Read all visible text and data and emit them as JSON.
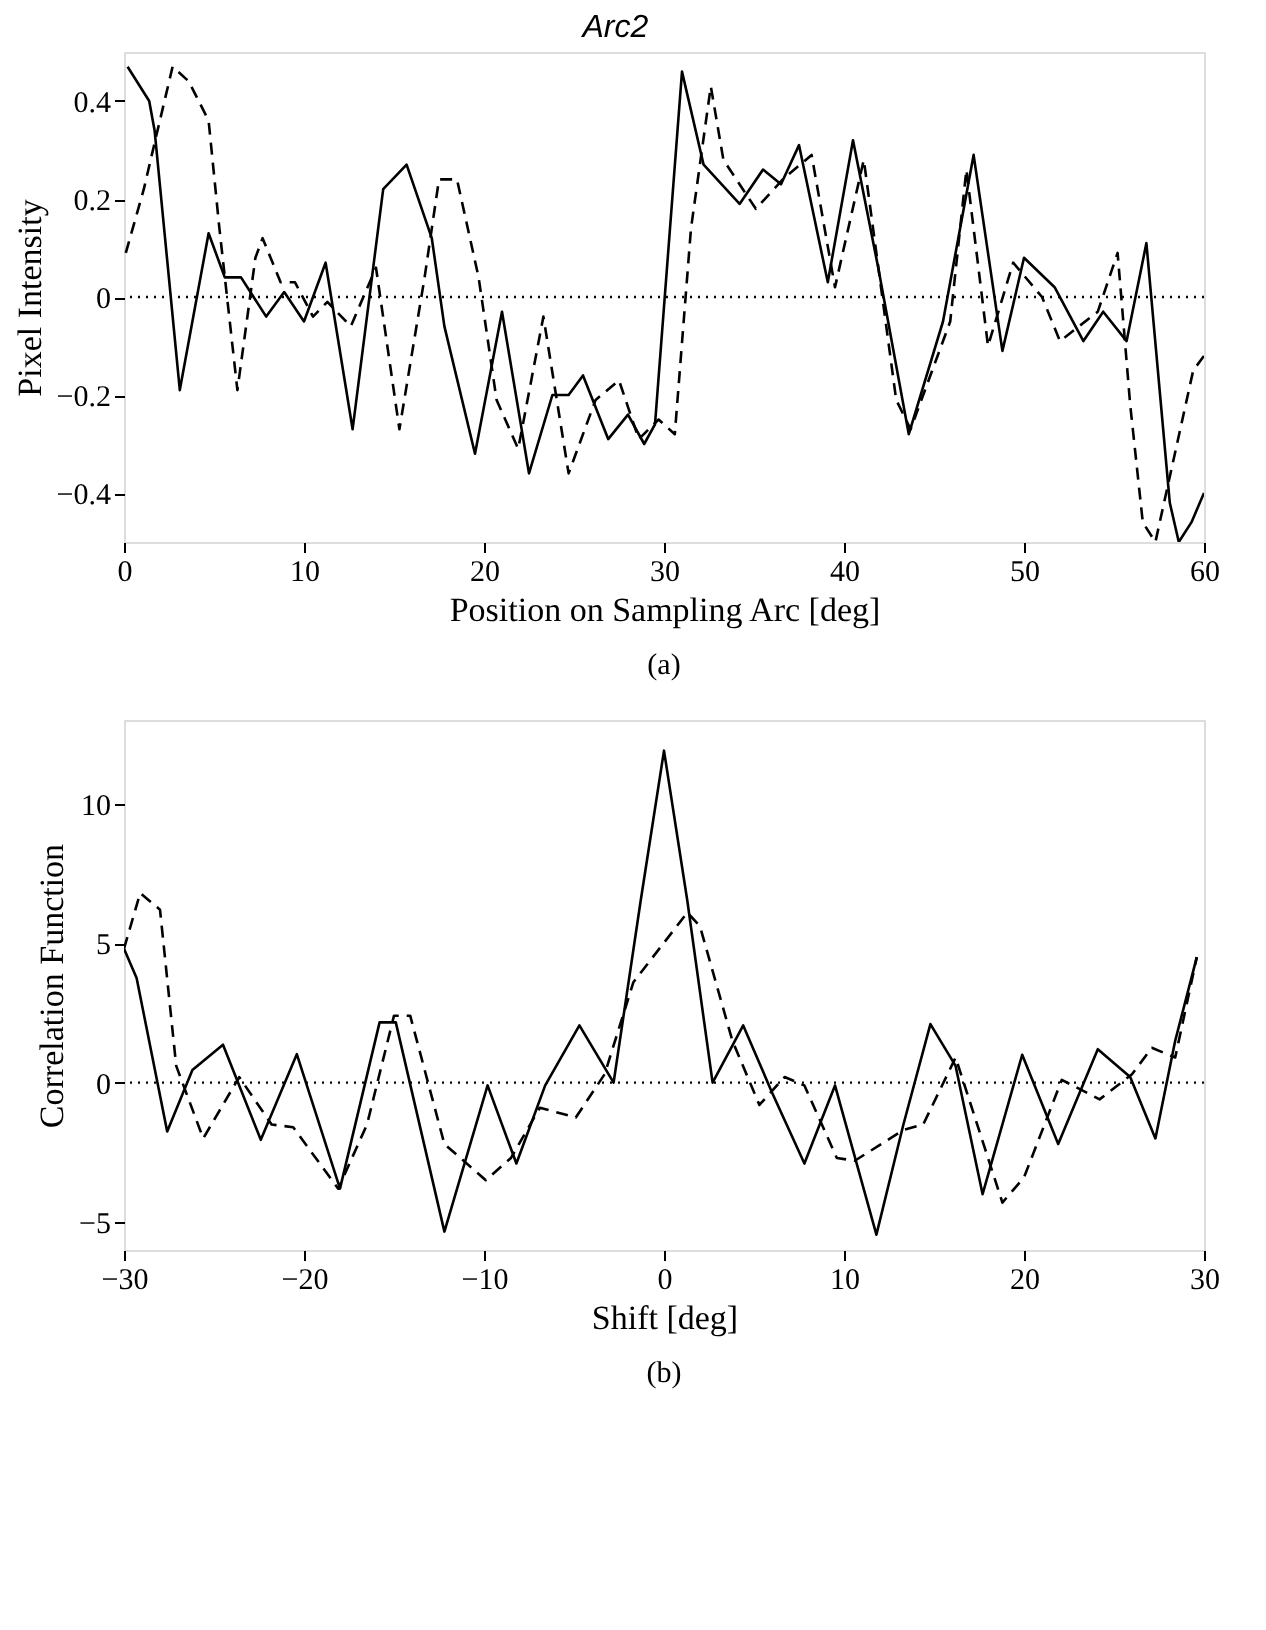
{
  "chart_data": [
    {
      "type": "line",
      "title": "Arc2",
      "xlabel": "Position on Sampling Arc [deg]",
      "ylabel": "Pixel Intensity",
      "xlim": [
        0,
        60
      ],
      "ylim": [
        -0.5,
        0.5
      ],
      "xticks": [
        0,
        10,
        20,
        30,
        40,
        50,
        60
      ],
      "yticks": [
        -0.4,
        -0.2,
        0,
        0.2,
        0.4
      ],
      "grid": false,
      "marker": "none",
      "annotations": [
        "(a)"
      ],
      "ref_lines": [
        {
          "axis": "y",
          "value": 0,
          "line_style": "dotted",
          "color": "#000000"
        }
      ],
      "series": [
        {
          "color": "#000000",
          "line_style": "solid",
          "x": [
            0.2,
            1.4,
            1.7,
            3.1,
            4.7,
            5.6,
            6.5,
            7.9,
            8.9,
            10.0,
            11.2,
            12.7,
            14.4,
            15.7,
            17.1,
            17.8,
            19.5,
            21.0,
            22.5,
            23.8,
            24.7,
            25.5,
            26.9,
            28.0,
            28.9,
            29.5,
            31.0,
            32.2,
            34.2,
            35.5,
            36.5,
            37.5,
            39.1,
            40.5,
            41.9,
            43.6,
            45.5,
            47.2,
            48.8,
            50.0,
            51.7,
            53.3,
            54.4,
            55.7,
            56.8,
            58.1,
            58.6,
            59.3,
            60
          ],
          "values": [
            0.47,
            0.4,
            0.34,
            -0.19,
            0.13,
            0.04,
            0.04,
            -0.04,
            0.01,
            -0.05,
            0.07,
            -0.27,
            0.22,
            0.27,
            0.12,
            -0.06,
            -0.32,
            -0.03,
            -0.36,
            -0.2,
            -0.2,
            -0.16,
            -0.29,
            -0.24,
            -0.3,
            -0.26,
            0.46,
            0.27,
            0.19,
            0.26,
            0.23,
            0.31,
            0.03,
            0.32,
            0.06,
            -0.28,
            -0.05,
            0.29,
            -0.11,
            0.08,
            0.02,
            -0.09,
            -0.03,
            -0.09,
            0.11,
            -0.42,
            -0.5,
            -0.46,
            -0.4
          ]
        },
        {
          "color": "#000000",
          "line_style": "dashed",
          "x": [
            0.1,
            1.1,
            1.8,
            2.7,
            3.6,
            4.7,
            5.3,
            6.3,
            7.3,
            7.7,
            8.7,
            9.5,
            10.5,
            11.3,
            12.6,
            14.0,
            15.3,
            16.7,
            17.5,
            18.5,
            19.7,
            20.7,
            21.9,
            23.3,
            24.7,
            26.2,
            27.5,
            28.6,
            29.7,
            30.6,
            31.5,
            32.6,
            33.3,
            35.1,
            36.6,
            38.2,
            39.5,
            41.1,
            42.9,
            43.7,
            45.9,
            46.8,
            48.0,
            49.4,
            51.0,
            52.0,
            54.1,
            55.2,
            55.9,
            56.6,
            57.3,
            59.4,
            60
          ],
          "values": [
            0.09,
            0.22,
            0.33,
            0.47,
            0.44,
            0.36,
            0.14,
            -0.19,
            0.08,
            0.12,
            0.03,
            0.03,
            -0.04,
            -0.01,
            -0.06,
            0.06,
            -0.27,
            0.04,
            0.24,
            0.24,
            0.04,
            -0.21,
            -0.31,
            -0.04,
            -0.36,
            -0.21,
            -0.17,
            -0.29,
            -0.25,
            -0.28,
            0.14,
            0.43,
            0.28,
            0.18,
            0.24,
            0.29,
            0.02,
            0.28,
            -0.21,
            -0.27,
            -0.05,
            0.26,
            -0.1,
            0.07,
            0.0,
            -0.09,
            -0.03,
            0.09,
            -0.22,
            -0.46,
            -0.5,
            -0.15,
            -0.12
          ]
        }
      ]
    },
    {
      "type": "line",
      "xlabel": "Shift [deg]",
      "ylabel": "Correlation Function",
      "xlim": [
        -30,
        30
      ],
      "ylim": [
        -6,
        13
      ],
      "xticks": [
        -30,
        -20,
        -10,
        0,
        10,
        20,
        30
      ],
      "yticks": [
        -5,
        0,
        5,
        10
      ],
      "grid": false,
      "marker": "none",
      "annotations": [
        "(b)"
      ],
      "ref_lines": [
        {
          "axis": "y",
          "value": 0,
          "line_style": "dotted",
          "color": "#000000"
        }
      ],
      "series": [
        {
          "color": "#000000",
          "line_style": "solid",
          "x": [
            -30,
            -29.3,
            -27.6,
            -26.2,
            -24.5,
            -22.4,
            -20.4,
            -18.0,
            -15.8,
            -14.9,
            -12.2,
            -9.8,
            -8.2,
            -6.6,
            -4.7,
            -2.8,
            -1.3,
            0,
            1.3,
            2.7,
            4.4,
            6.0,
            7.8,
            9.5,
            11.8,
            13.3,
            14.8,
            16.2,
            17.7,
            19.9,
            21.9,
            24.1,
            25.9,
            27.3,
            28.4,
            29.6
          ],
          "values": [
            4.8,
            3.75,
            -1.75,
            0.45,
            1.36,
            -2.05,
            1.02,
            -3.8,
            2.16,
            2.16,
            -5.34,
            -0.1,
            -2.9,
            -0.1,
            2.05,
            0,
            6.5,
            11.9,
            6.5,
            0,
            2.05,
            -0.35,
            -2.9,
            -0.1,
            -5.45,
            -1.5,
            2.1,
            0.6,
            -4.0,
            1.0,
            -2.2,
            1.2,
            0.2,
            -2.0,
            1.5,
            4.5
          ]
        },
        {
          "color": "#000000",
          "line_style": "dashed",
          "x": [
            -30,
            -29.1,
            -28.0,
            -27.1,
            -25.6,
            -23.6,
            -21.8,
            -20.6,
            -18.1,
            -16.5,
            -15.0,
            -14.1,
            -12.2,
            -9.9,
            -8.5,
            -6.9,
            -4.9,
            -3.3,
            -1.7,
            1.3,
            2.0,
            3.8,
            5.3,
            6.7,
            7.8,
            9.6,
            10.6,
            13.3,
            14.4,
            16.2,
            18.8,
            20.0,
            22.1,
            24.2,
            26.0,
            27.1,
            28.4,
            29.6
          ],
          "values": [
            4.8,
            6.8,
            6.2,
            0.6,
            -2.0,
            0.2,
            -1.5,
            -1.6,
            -3.8,
            -1.5,
            2.4,
            2.4,
            -2.2,
            -3.5,
            -2.7,
            -0.9,
            -1.25,
            0.3,
            3.6,
            6.1,
            5.6,
            1.5,
            -0.8,
            0.2,
            -0.1,
            -2.7,
            -2.8,
            -1.7,
            -1.5,
            0.9,
            -4.3,
            -3.4,
            0.1,
            -0.6,
            0.3,
            1.25,
            0.9,
            4.5
          ]
        }
      ]
    }
  ]
}
